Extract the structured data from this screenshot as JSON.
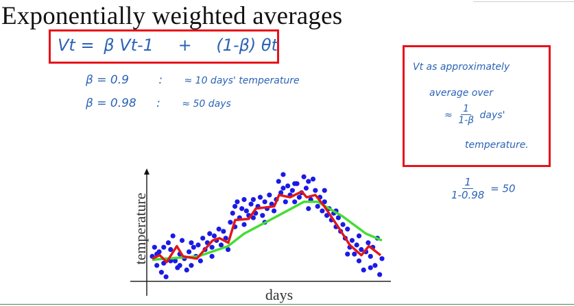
{
  "title": "Exponentially weighted averages",
  "equation": {
    "lhs": "Vt =",
    "term1": "β Vt-1",
    "plus": "+",
    "term2": "(1-β) θt"
  },
  "notes": [
    {
      "beta": "β = 0.9",
      "sep": ":",
      "text": "≈ 10 days' temperature"
    },
    {
      "beta": "β = 0.98",
      "sep": ":",
      "text": "≈ 50 days"
    }
  ],
  "approx_box": {
    "line1": "Vt as approximately",
    "line2": "average over",
    "approx": "≈",
    "frac_num": "1",
    "frac_den": "1-β",
    "days": "days'",
    "line4": "temperature."
  },
  "calc": {
    "num": "1",
    "den": "1-0.98",
    "result": "= 50"
  },
  "colors": {
    "ink": "#2b63b5",
    "box": "#e8101a",
    "points": "#1a1ae6",
    "red_line": "#e01818",
    "green_line": "#44dd33"
  },
  "chart_data": {
    "type": "scatter",
    "xlabel": "days",
    "ylabel": "temperature",
    "xlim": [
      0,
      100
    ],
    "ylim": [
      0,
      100
    ],
    "grid": false,
    "points": [
      [
        0,
        22
      ],
      [
        1,
        30
      ],
      [
        2,
        14
      ],
      [
        3,
        26
      ],
      [
        4,
        8
      ],
      [
        5,
        16
      ],
      [
        6,
        4
      ],
      [
        7,
        34
      ],
      [
        8,
        28
      ],
      [
        9,
        40
      ],
      [
        10,
        18
      ],
      [
        11,
        12
      ],
      [
        12,
        24
      ],
      [
        13,
        36
      ],
      [
        14,
        20
      ],
      [
        15,
        10
      ],
      [
        16,
        26
      ],
      [
        17,
        14
      ],
      [
        18,
        30
      ],
      [
        19,
        22
      ],
      [
        20,
        32
      ],
      [
        21,
        18
      ],
      [
        22,
        38
      ],
      [
        23,
        28
      ],
      [
        24,
        34
      ],
      [
        25,
        42
      ],
      [
        26,
        30
      ],
      [
        27,
        40
      ],
      [
        28,
        36
      ],
      [
        29,
        46
      ],
      [
        30,
        32
      ],
      [
        31,
        44
      ],
      [
        32,
        38
      ],
      [
        33,
        28
      ],
      [
        34,
        52
      ],
      [
        35,
        60
      ],
      [
        36,
        48
      ],
      [
        37,
        70
      ],
      [
        38,
        56
      ],
      [
        39,
        64
      ],
      [
        40,
        50
      ],
      [
        41,
        62
      ],
      [
        42,
        58
      ],
      [
        43,
        68
      ],
      [
        44,
        72
      ],
      [
        45,
        60
      ],
      [
        46,
        66
      ],
      [
        47,
        74
      ],
      [
        48,
        58
      ],
      [
        49,
        70
      ],
      [
        50,
        64
      ],
      [
        51,
        76
      ],
      [
        52,
        68
      ],
      [
        53,
        62
      ],
      [
        54,
        72
      ],
      [
        55,
        88
      ],
      [
        56,
        78
      ],
      [
        57,
        82
      ],
      [
        58,
        70
      ],
      [
        59,
        84
      ],
      [
        60,
        76
      ],
      [
        61,
        80
      ],
      [
        62,
        70
      ],
      [
        63,
        86
      ],
      [
        64,
        74
      ],
      [
        65,
        78
      ],
      [
        66,
        92
      ],
      [
        67,
        82
      ],
      [
        68,
        88
      ],
      [
        69,
        72
      ],
      [
        70,
        90
      ],
      [
        71,
        80
      ],
      [
        72,
        66
      ],
      [
        73,
        74
      ],
      [
        74,
        62
      ],
      [
        75,
        70
      ],
      [
        76,
        58
      ],
      [
        77,
        64
      ],
      [
        78,
        54
      ],
      [
        79,
        60
      ],
      [
        80,
        48
      ],
      [
        81,
        56
      ],
      [
        82,
        44
      ],
      [
        83,
        50
      ],
      [
        84,
        38
      ],
      [
        85,
        46
      ],
      [
        86,
        30
      ],
      [
        87,
        36
      ],
      [
        88,
        24
      ],
      [
        89,
        32
      ],
      [
        90,
        18
      ],
      [
        91,
        28
      ],
      [
        92,
        10
      ],
      [
        93,
        26
      ],
      [
        94,
        34
      ],
      [
        95,
        22
      ],
      [
        96,
        30
      ],
      [
        97,
        14
      ],
      [
        98,
        38
      ],
      [
        99,
        6
      ],
      [
        100,
        20
      ],
      [
        2,
        24
      ],
      [
        5,
        30
      ],
      [
        8,
        18
      ],
      [
        12,
        14
      ],
      [
        17,
        34
      ],
      [
        26,
        22
      ],
      [
        36,
        66
      ],
      [
        40,
        72
      ],
      [
        44,
        56
      ],
      [
        49,
        52
      ],
      [
        57,
        94
      ],
      [
        62,
        86
      ],
      [
        68,
        64
      ],
      [
        75,
        80
      ],
      [
        80,
        62
      ],
      [
        85,
        24
      ],
      [
        90,
        40
      ],
      [
        95,
        12
      ]
    ],
    "series": [
      {
        "name": "beta 0.9 (red)",
        "color": "#e01818",
        "x": [
          0,
          3.3,
          6.3,
          10.7,
          13.4,
          19.4,
          26.3,
          29.3,
          33.1,
          36.1,
          42,
          45.1,
          53.1,
          55.2,
          60,
          65.1,
          67.2,
          71,
          74.9,
          80.9,
          86,
          91,
          94.3,
          99.4
        ],
        "y": [
          20,
          23,
          17,
          31,
          22,
          20,
          36,
          38,
          34,
          54,
          55,
          64,
          66,
          76,
          74,
          79,
          74,
          76,
          66,
          48,
          32,
          23,
          31,
          23
        ]
      },
      {
        "name": "beta 0.98 (green)",
        "color": "#44dd33",
        "x": [
          0,
          6,
          20,
          33,
          40,
          55,
          66,
          72,
          83,
          93,
          100
        ],
        "y": [
          19,
          20,
          22,
          31,
          42,
          58,
          70,
          70,
          57,
          42,
          36
        ]
      }
    ]
  }
}
